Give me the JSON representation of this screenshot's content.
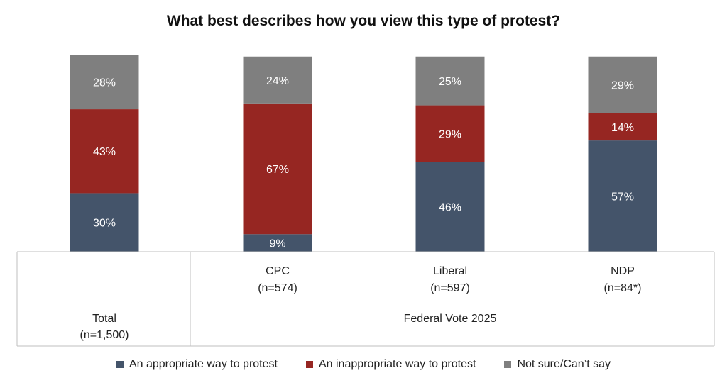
{
  "chart_data": {
    "type": "bar",
    "stacked": true,
    "title": "What best describes how you view this type of protest?",
    "categories": [
      {
        "line1": "",
        "line2": ""
      },
      {
        "line1": "CPC",
        "line2": "(n=574)"
      },
      {
        "line1": "Liberal",
        "line2": "(n=597)"
      },
      {
        "line1": "NDP",
        "line2": "(n=84*)"
      }
    ],
    "group_labels": {
      "total": {
        "line1": "Total",
        "line2": "(n=1,500)"
      },
      "federal_vote": "Federal Vote 2025"
    },
    "series": [
      {
        "name": "An appropriate way to protest",
        "color": "#44546a",
        "values": [
          30,
          9,
          46,
          57
        ]
      },
      {
        "name": "An inappropriate way to protest",
        "color": "#962622",
        "values": [
          43,
          67,
          29,
          14
        ]
      },
      {
        "name": "Not sure/Can’t say",
        "color": "#7f7f7f",
        "values": [
          28,
          24,
          25,
          29
        ]
      }
    ],
    "value_suffix": "%",
    "legend_position": "bottom",
    "grid": false
  }
}
